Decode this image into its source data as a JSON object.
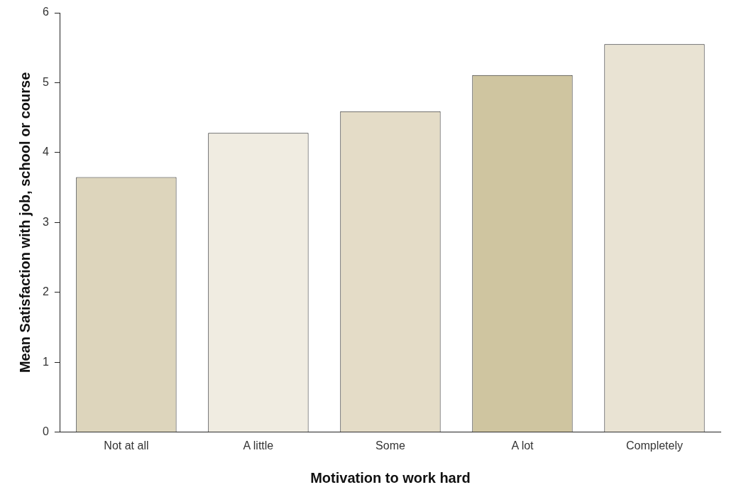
{
  "chart_data": {
    "type": "bar",
    "xlabel": "Motivation to work hard",
    "ylabel": "Mean Satisfaction with job, school or course",
    "categories": [
      "Not at all",
      "A little",
      "Some",
      "A lot",
      "Completely"
    ],
    "values": [
      3.65,
      4.28,
      4.59,
      5.11,
      5.55
    ],
    "colors": [
      "#ddd5bc",
      "#f0ece1",
      "#e4dcc7",
      "#cfc5a0",
      "#e9e3d3"
    ],
    "ylim": [
      0,
      6
    ],
    "yticks": [
      0,
      1,
      2,
      3,
      4,
      5,
      6
    ],
    "grid": false,
    "legend": false
  }
}
